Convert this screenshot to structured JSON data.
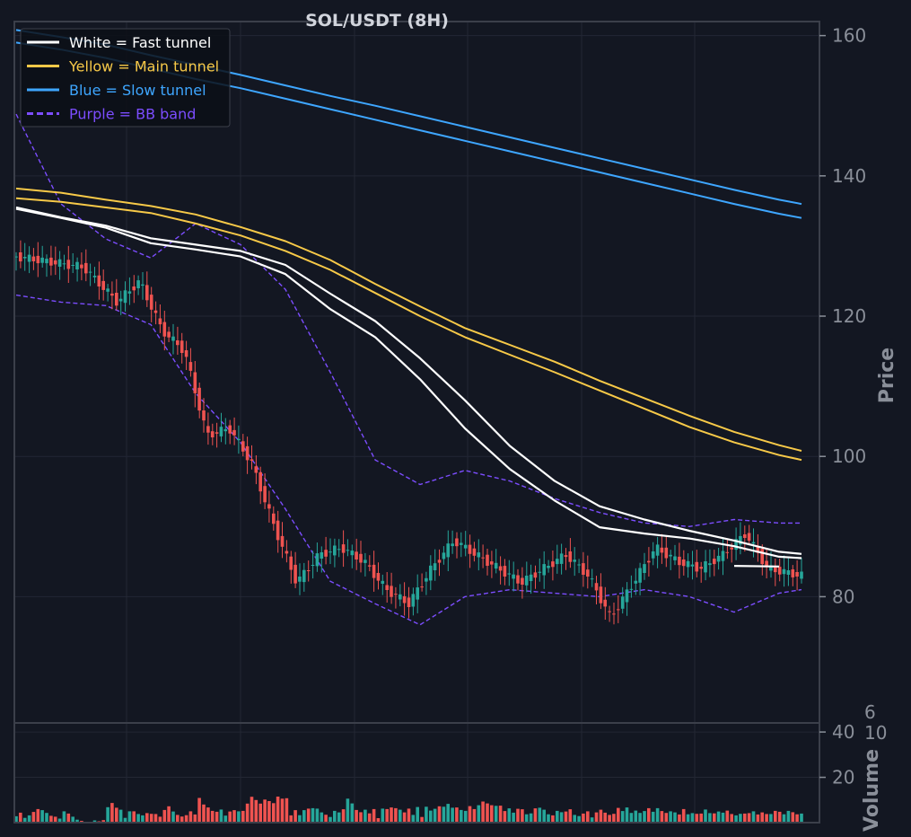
{
  "chart_data": [
    {
      "type": "candlestick",
      "title": "SOL/USDT (8H)",
      "ylabel": "Price",
      "ylim": [
        62,
        162
      ],
      "yticks": [
        80,
        100,
        120,
        140,
        160
      ],
      "grid": true,
      "legend_position": "top-left",
      "legend": [
        {
          "label": "White = Fast tunnel",
          "color": "#ffffff",
          "style": "solid"
        },
        {
          "label": "Yellow = Main tunnel",
          "color": "#f7c948",
          "style": "solid"
        },
        {
          "label": "Blue = Slow tunnel",
          "color": "#3ea6ff",
          "style": "solid"
        },
        {
          "label": "Purple = BB band",
          "color": "#7c4dff",
          "style": "dashed"
        }
      ],
      "x": [
        0,
        4,
        8,
        12,
        16,
        20,
        24,
        28,
        32,
        36,
        40,
        44,
        48,
        52,
        56,
        60,
        64,
        68,
        70
      ],
      "series": [
        {
          "color": "#ffffff",
          "values": [
            135.3,
            134.0,
            132.6,
            130.4,
            129.5,
            128.5,
            126.0,
            121.0,
            117.0,
            111.0,
            104.0,
            98.2,
            93.7,
            89.9,
            89.0,
            88.3,
            87.2,
            85.7,
            85.5
          ]
        },
        {
          "color": "#ffffff",
          "values": [
            135.5,
            134.1,
            132.9,
            131.1,
            130.2,
            129.3,
            127.3,
            123.2,
            119.3,
            114.0,
            108.0,
            101.5,
            96.5,
            92.9,
            91.0,
            89.4,
            88.0,
            86.4,
            86.1
          ]
        },
        {
          "color": "#ffffff",
          "values": [
            null,
            null,
            null,
            null,
            null,
            null,
            null,
            null,
            null,
            null,
            null,
            null,
            null,
            null,
            null,
            null,
            84.4,
            84.3,
            null
          ]
        },
        {
          "color": "#f7c948",
          "values": [
            136.8,
            136.3,
            135.5,
            134.7,
            133.2,
            131.5,
            129.3,
            126.6,
            123.3,
            120.0,
            117.0,
            114.5,
            112.0,
            109.4,
            106.8,
            104.2,
            102.0,
            100.2,
            99.5
          ]
        },
        {
          "color": "#f7c948",
          "values": [
            138.2,
            137.6,
            136.6,
            135.7,
            134.5,
            132.7,
            130.7,
            128.0,
            124.6,
            121.4,
            118.3,
            115.9,
            113.5,
            110.8,
            108.3,
            105.8,
            103.5,
            101.6,
            100.8
          ]
        },
        {
          "color": "#3ea6ff",
          "values": [
            159.0,
            158.0,
            156.8,
            155.3,
            153.8,
            152.5,
            151.0,
            149.5,
            148.0,
            146.5,
            145.0,
            143.5,
            142.0,
            140.5,
            139.0,
            137.5,
            136.0,
            134.6,
            134.0
          ]
        },
        {
          "color": "#3ea6ff",
          "values": [
            160.8,
            159.8,
            158.7,
            157.2,
            155.8,
            154.4,
            152.9,
            151.4,
            150.0,
            148.5,
            147.0,
            145.5,
            144.0,
            142.5,
            141.0,
            139.5,
            138.0,
            136.6,
            136.0
          ]
        },
        {
          "color": "#7c4dff",
          "style": "dashed",
          "values": [
            148.8,
            136.0,
            131.0,
            128.3,
            133.2,
            130.2,
            123.8,
            112.0,
            99.5,
            96.0,
            98.0,
            96.5,
            94.0,
            92.0,
            90.5,
            90.0,
            91.0,
            90.5,
            90.5
          ]
        },
        {
          "color": "#7c4dff",
          "style": "dashed",
          "values": [
            123.0,
            122.0,
            121.5,
            118.8,
            109.0,
            102.0,
            92.5,
            82.2,
            79.0,
            76.0,
            80.0,
            81.0,
            80.5,
            80.0,
            81.0,
            80.0,
            77.8,
            80.5,
            81.0
          ]
        }
      ]
    },
    {
      "type": "bar",
      "ylabel": "Volume",
      "scale_label": "1e6",
      "ylim": [
        0,
        44
      ],
      "yticks": [
        20,
        40
      ],
      "grid": true,
      "values": [
        2.8,
        4.4,
        2.1,
        3.2,
        4.7,
        6.0,
        5.5,
        4.3,
        3.0,
        2.6,
        1.8,
        5.0,
        4.0,
        2.6,
        1.3,
        0.8,
        0.4,
        0.3,
        1.0,
        0.6,
        1.1,
        6.8,
        8.7,
        6.6,
        5.7,
        2.1,
        5.0,
        5.0,
        3.8,
        3.2,
        4.2,
        3.9,
        3.8,
        2.6,
        5.6,
        7.2,
        4.9,
        3.4,
        2.7,
        3.3,
        5.0,
        3.6,
        10.9,
        8.0,
        6.7,
        5.2,
        4.8,
        5.8,
        3.1,
        4.9,
        5.5,
        5.0,
        5.2,
        8.4,
        11.4,
        10.0,
        8.4,
        10.2,
        9.5,
        8.6,
        11.5,
        10.6,
        10.8,
        3.2,
        5.5,
        3.3,
        5.5,
        6.2,
        6.4,
        6.2,
        4.5,
        3.5,
        2.5,
        5.2,
        4.5,
        5.9,
        10.6,
        8.5,
        5.6,
        4.6,
        5.7,
        4.1,
        6.0,
        2.0,
        6.2,
        6.0,
        6.7,
        6.4,
        5.7,
        4.5,
        6.2,
        3.4,
        6.9,
        2.5,
        7.0,
        5.3,
        6.1,
        7.2,
        7.0,
        8.3,
        6.6,
        6.7,
        5.6,
        5.2,
        7.3,
        6.0,
        7.7,
        9.3,
        8.5,
        7.7,
        7.4,
        7.5,
        5.1,
        6.3,
        4.4,
        6.1,
        5.9,
        3.7,
        4.1,
        6.3,
        6.6,
        5.7,
        3.7,
        3.2,
        5.2,
        4.6,
        4.9,
        5.9,
        3.4,
        2.9,
        4.0,
        5.0,
        2.3,
        4.5,
        5.7,
        4.4,
        3.4,
        3.9,
        6.5,
        5.1,
        6.7,
        4.3,
        5.3,
        4.3,
        5.1,
        6.4,
        4.8,
        6.4,
        5.1,
        4.3,
        5.0,
        4.5,
        3.6,
        6.0,
        3.7,
        4.2,
        3.9,
        4.0,
        5.8,
        4.2,
        4.1,
        4.9,
        4.4,
        5.3,
        3.8,
        3.2,
        3.9,
        4.0,
        4.2,
        5.0,
        3.6,
        4.5,
        3.8,
        3.8,
        5.2,
        4.8,
        3.7,
        5.2,
        4.6,
        3.7,
        4.0
      ]
    }
  ]
}
